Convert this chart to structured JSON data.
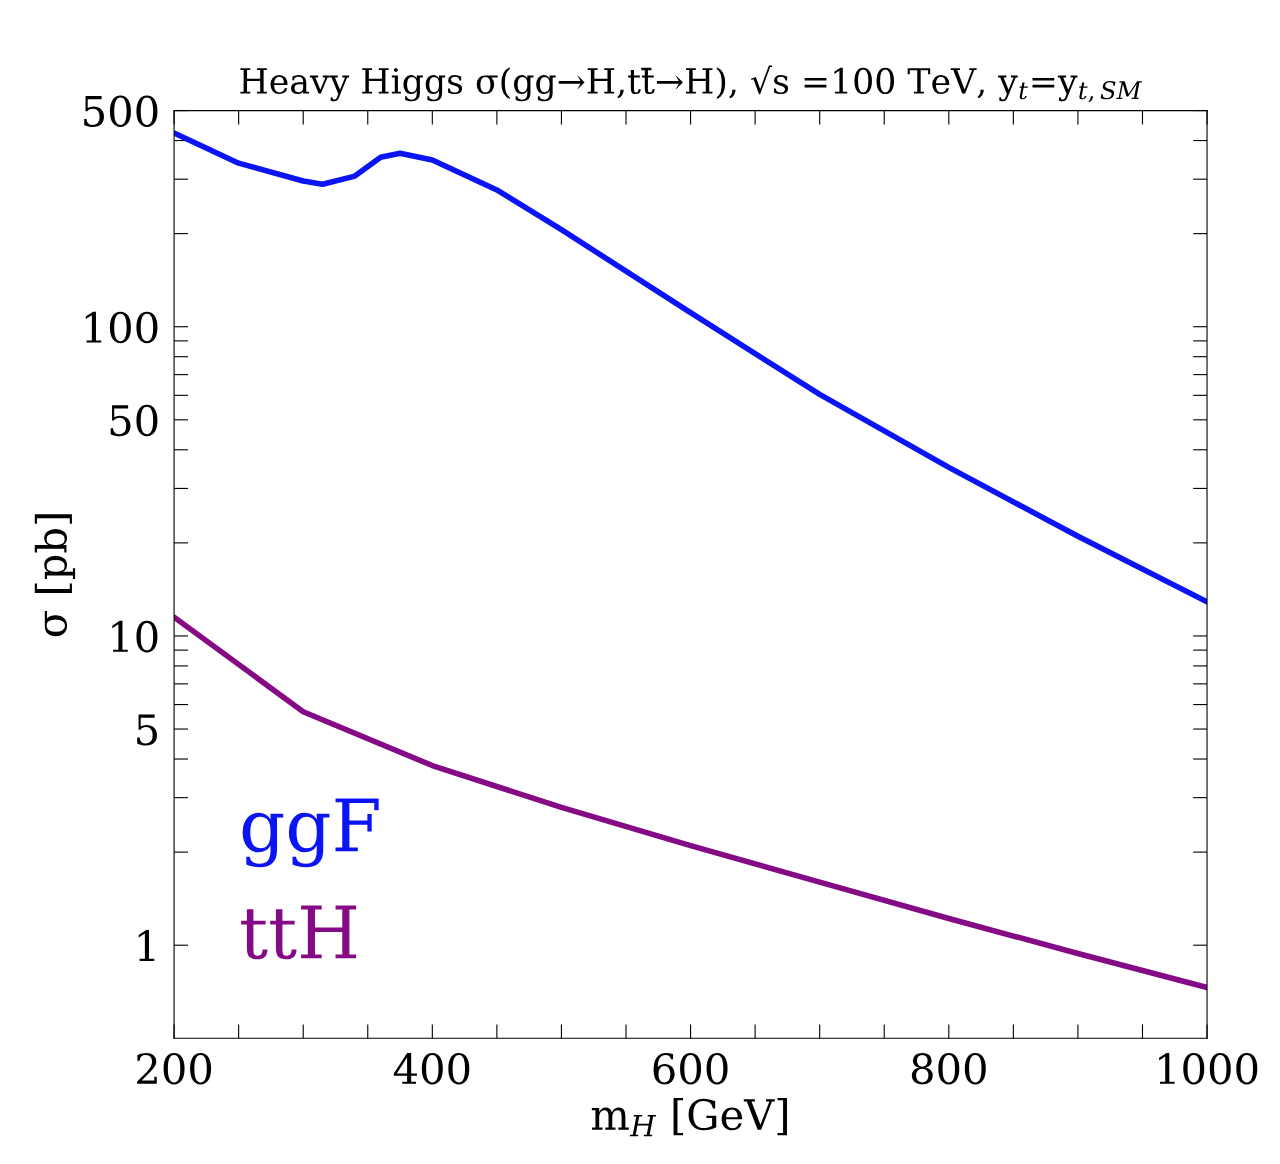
{
  "chart_data": {
    "type": "line",
    "title": "Heavy Higgs σ(gg→H,tt̄→H), √s =100 TeV, y$_{t}$=y$_{t,SM}$",
    "xlabel": "m$_{H}$ [GeV]",
    "ylabel": "σ [pb]",
    "log": "y",
    "xlim": [
      200,
      1000
    ],
    "ylim": [
      0.5,
      500
    ],
    "xticks": [
      200,
      {
        "value": 250,
        "label": null
      },
      {
        "value": 300,
        "label": null
      },
      {
        "value": 350,
        "label": null
      },
      400,
      {
        "value": 450,
        "label": null
      },
      {
        "value": 500,
        "label": null
      },
      {
        "value": 550,
        "label": null
      },
      600,
      {
        "value": 650,
        "label": null
      },
      {
        "value": 700,
        "label": null
      },
      {
        "value": 750,
        "label": null
      },
      800,
      {
        "value": 850,
        "label": null
      },
      {
        "value": 900,
        "label": null
      },
      {
        "value": 950,
        "label": null
      },
      1000
    ],
    "yticks": [
      1,
      {
        "value": 2,
        "label": null
      },
      {
        "value": 3,
        "label": null
      },
      {
        "value": 4,
        "label": null
      },
      5,
      {
        "value": 6,
        "label": null
      },
      {
        "value": 7,
        "label": null
      },
      {
        "value": 8,
        "label": null
      },
      {
        "value": 9,
        "label": null
      },
      10,
      {
        "value": 20,
        "label": null
      },
      {
        "value": 30,
        "label": null
      },
      {
        "value": 40,
        "label": null
      },
      50,
      {
        "value": 60,
        "label": null
      },
      {
        "value": 70,
        "label": null
      },
      {
        "value": 80,
        "label": null
      },
      {
        "value": 90,
        "label": null
      },
      100,
      {
        "value": 200,
        "label": null
      },
      {
        "value": 300,
        "label": null
      },
      {
        "value": 400,
        "label": null
      },
      500
    ],
    "grid": false,
    "legend": "bottom left",
    "marker": "none",
    "line_style": "solid",
    "series": [
      {
        "name": "ggF",
        "color": "#0a14f5",
        "x": [
          200,
          250,
          300,
          315,
          340,
          360,
          375,
          400,
          450,
          500,
          600,
          700,
          800,
          900,
          1000
        ],
        "values": [
          423,
          338,
          296,
          289,
          307,
          353,
          364,
          346,
          277,
          206,
          111,
          60.4,
          35.1,
          21.0,
          12.9
        ]
      },
      {
        "name": "ttH",
        "color": "#850a85",
        "x": [
          200,
          300,
          400,
          500,
          600,
          700,
          800,
          900,
          1000
        ],
        "values": [
          11.5,
          5.69,
          3.81,
          2.79,
          2.1,
          1.6,
          1.22,
          0.94,
          0.73
        ]
      }
    ]
  }
}
